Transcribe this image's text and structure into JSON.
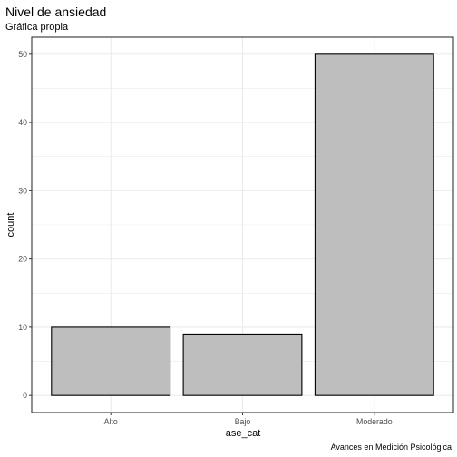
{
  "chart_data": {
    "type": "bar",
    "title": "Nivel de ansiedad",
    "subtitle": "Gráfica propia",
    "caption": "Avances en Medición Psicológica",
    "xlabel": "ase_cat",
    "ylabel": "count",
    "categories": [
      "Alto",
      "Bajo",
      "Moderado"
    ],
    "values": [
      10,
      9,
      50
    ],
    "ylim": [
      -2.5,
      52.5
    ],
    "yticks": [
      0,
      10,
      20,
      30,
      40,
      50
    ],
    "grid": true,
    "legend": "none",
    "bar_fill": "#bebebe",
    "bar_stroke": "#000000",
    "grid_color": "#ebebeb",
    "panel_border": "#333333"
  }
}
